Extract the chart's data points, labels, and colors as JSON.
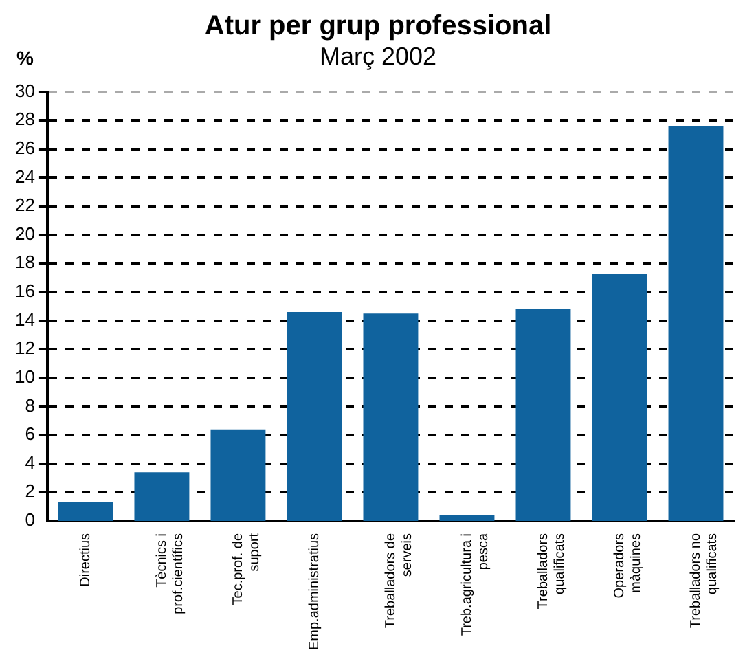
{
  "chart_data": {
    "type": "bar",
    "title": "Atur per grup professional",
    "subtitle": "Març 2002",
    "ylabel": "%",
    "categories": [
      "Directius",
      "Tècnics i\nprof.científics",
      "Tec.prof. de\nsuport",
      "Emp.administratius",
      "Treballadors de\nserveis",
      "Treb.agricultura i\npesca",
      "Treballadors\nqualificats",
      "Operadors\nmàquines",
      "Treballadors no\nqualificats"
    ],
    "values": [
      1.3,
      3.4,
      6.4,
      14.6,
      14.5,
      0.4,
      14.8,
      17.3,
      27.6
    ],
    "color": "#10639e",
    "ylim": [
      0,
      30
    ],
    "yticks": [
      0,
      2,
      4,
      6,
      8,
      10,
      12,
      14,
      16,
      18,
      20,
      22,
      24,
      26,
      28,
      30
    ],
    "grid": "y",
    "legend": false
  }
}
